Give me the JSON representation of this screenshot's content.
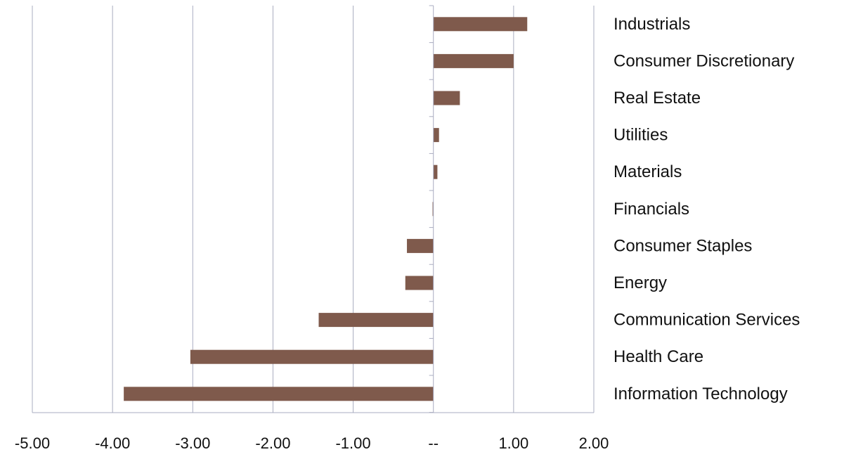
{
  "chart_data": {
    "type": "bar",
    "orientation": "horizontal",
    "categories": [
      "Industrials",
      "Consumer Discretionary",
      "Real Estate",
      "Utilities",
      "Materials",
      "Financials",
      "Consumer Staples",
      "Energy",
      "Communication Services",
      "Health Care",
      "Information Technology"
    ],
    "values": [
      1.17,
      1.0,
      0.33,
      0.07,
      0.05,
      -0.01,
      -0.33,
      -0.35,
      -1.43,
      -3.03,
      -3.86
    ],
    "xlim": [
      -5,
      2
    ],
    "x_ticks": [
      -5,
      -4,
      -3,
      -2,
      -1,
      0,
      1,
      2
    ],
    "x_tick_labels": [
      "-5.00",
      "-4.00",
      "-3.00",
      "-2.00",
      "-1.00",
      "--",
      "1.00",
      "2.00"
    ],
    "title": "",
    "xlabel": "",
    "ylabel": "",
    "grid": "vertical",
    "legend": "none",
    "category_label_position": "right",
    "bar_color": "#7f5a4c",
    "grid_color": "#a9acc0",
    "axis_color": "#a9acc0"
  }
}
